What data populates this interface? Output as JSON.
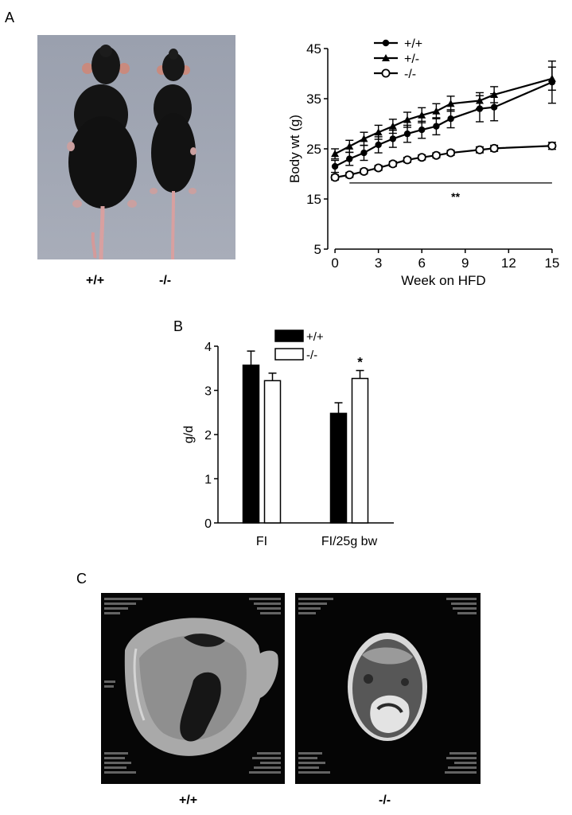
{
  "panel_labels": {
    "a": "A",
    "b": "B",
    "c": "C"
  },
  "photo": {
    "left_label": "+/+",
    "right_label": "-/-"
  },
  "mri": {
    "left_label": "+/+",
    "right_label": "-/-"
  },
  "chart_data": [
    {
      "type": "line",
      "xlabel": "Week on HFD",
      "ylabel": "Body wt (g)",
      "xlim": [
        -0.5,
        15.5
      ],
      "ylim": [
        5,
        45
      ],
      "xticks": [
        0,
        3,
        6,
        9,
        12,
        15
      ],
      "yticks": [
        5,
        15,
        25,
        35,
        45
      ],
      "grid": false,
      "legend": "top-left",
      "significance": {
        "text": "**",
        "x_from": 1,
        "x_to": 15,
        "y": 18.2
      },
      "series": [
        {
          "name": "+/+",
          "marker": "filled-circle",
          "x": [
            0,
            1,
            2,
            3,
            4,
            5,
            6,
            7,
            8,
            10,
            11,
            15
          ],
          "y": [
            21.5,
            23,
            24.2,
            25.8,
            27,
            28,
            28.8,
            29.5,
            31,
            33,
            33.3,
            38.3
          ],
          "err": [
            1.2,
            1.3,
            1.5,
            1.6,
            1.7,
            1.7,
            1.7,
            1.7,
            1.8,
            2.6,
            2.7,
            4.2
          ]
        },
        {
          "name": "+/-",
          "marker": "filled-triangle",
          "x": [
            0,
            1,
            2,
            3,
            4,
            5,
            6,
            7,
            8,
            10,
            11,
            15
          ],
          "y": [
            24,
            25.5,
            27,
            28.3,
            29.5,
            30.8,
            31.7,
            32.5,
            34,
            34.6,
            35.8,
            39
          ],
          "err": [
            1.0,
            1.2,
            1.3,
            1.4,
            1.4,
            1.5,
            1.5,
            1.5,
            1.5,
            1.6,
            1.6,
            2.3
          ]
        },
        {
          "name": "-/-",
          "marker": "open-circle",
          "x": [
            0,
            1,
            2,
            3,
            4,
            5,
            6,
            7,
            8,
            10,
            11,
            15
          ],
          "y": [
            19.3,
            19.8,
            20.5,
            21.2,
            22,
            22.8,
            23.3,
            23.7,
            24.2,
            24.8,
            25.1,
            25.6
          ],
          "err": [
            0.5,
            0.5,
            0.5,
            0.5,
            0.5,
            0.5,
            0.5,
            0.5,
            0.5,
            0.6,
            0.6,
            0.7
          ]
        }
      ]
    },
    {
      "type": "bar",
      "ylabel": "g/d",
      "ylim": [
        0,
        4
      ],
      "yticks": [
        0,
        1,
        2,
        3,
        4
      ],
      "categories": [
        "FI",
        "FI/25g bw"
      ],
      "legend": "top",
      "grid": false,
      "annotations": [
        {
          "category": "FI/25g bw",
          "series": "-/-",
          "text": "*"
        }
      ],
      "series": [
        {
          "name": "+/+",
          "color": "#000000",
          "values": [
            3.57,
            2.48
          ],
          "err": [
            0.32,
            0.24
          ]
        },
        {
          "name": "-/-",
          "color": "#ffffff",
          "values": [
            3.22,
            3.27
          ],
          "err": [
            0.17,
            0.18
          ]
        }
      ]
    }
  ]
}
